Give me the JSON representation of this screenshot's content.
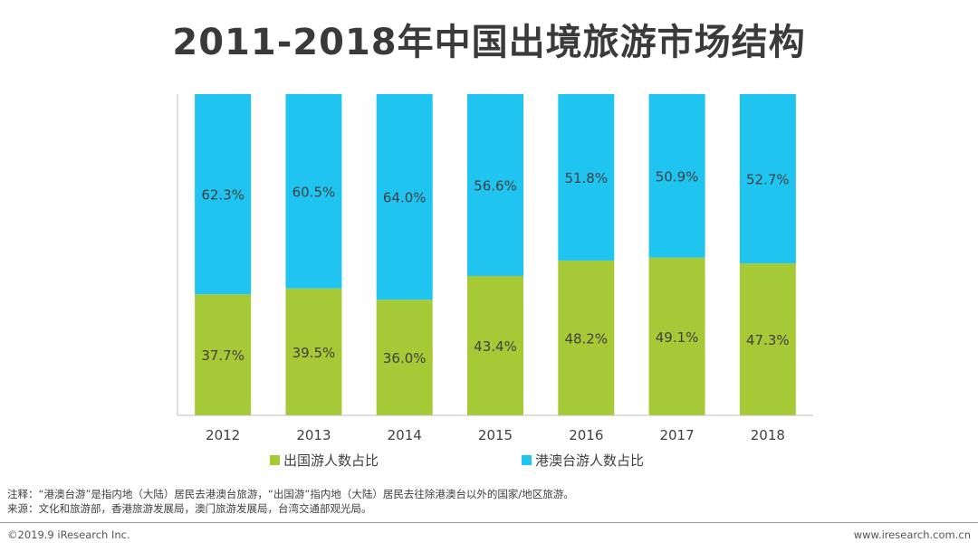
{
  "title": "2011-2018年中国出境旅游市场结构",
  "chart_data": {
    "type": "bar",
    "stacked": true,
    "percent": true,
    "title": "2011-2018年中国出境旅游市场结构",
    "categories": [
      "2012",
      "2013",
      "2014",
      "2015",
      "2016",
      "2017",
      "2018"
    ],
    "series": [
      {
        "name": "出国游人数占比",
        "color": "#a6c936",
        "values": [
          37.7,
          39.5,
          36.0,
          43.4,
          48.2,
          49.1,
          47.3
        ],
        "labels": [
          "37.7%",
          "39.5%",
          "36.0%",
          "43.4%",
          "48.2%",
          "49.1%",
          "47.3%"
        ]
      },
      {
        "name": "港澳台游人数占比",
        "color": "#1fc5f0",
        "values": [
          62.3,
          60.5,
          64.0,
          56.6,
          51.8,
          50.9,
          52.7
        ],
        "labels": [
          "62.3%",
          "60.5%",
          "64.0%",
          "56.6%",
          "51.8%",
          "50.9%",
          "52.7%"
        ]
      }
    ],
    "ylim": [
      0,
      100
    ],
    "xlabel": "",
    "ylabel": "",
    "legend_position": "bottom"
  },
  "legend": {
    "outbound": "出国游人数占比",
    "hmt": "港澳台游人数占比"
  },
  "notes": {
    "line1": "注释：“港澳台游”是指内地（大陆）居民去港澳台旅游，“出国游”指内地（大陆）居民去往除港澳台以外的国家/地区旅游。",
    "line2": "来源：文化和旅游部，香港旅游发展局，澳门旅游发展局，台湾交通部观光局。"
  },
  "footer": {
    "copyright": "©2019.9 iResearch Inc.",
    "site": "www.iresearch.com.cn"
  }
}
